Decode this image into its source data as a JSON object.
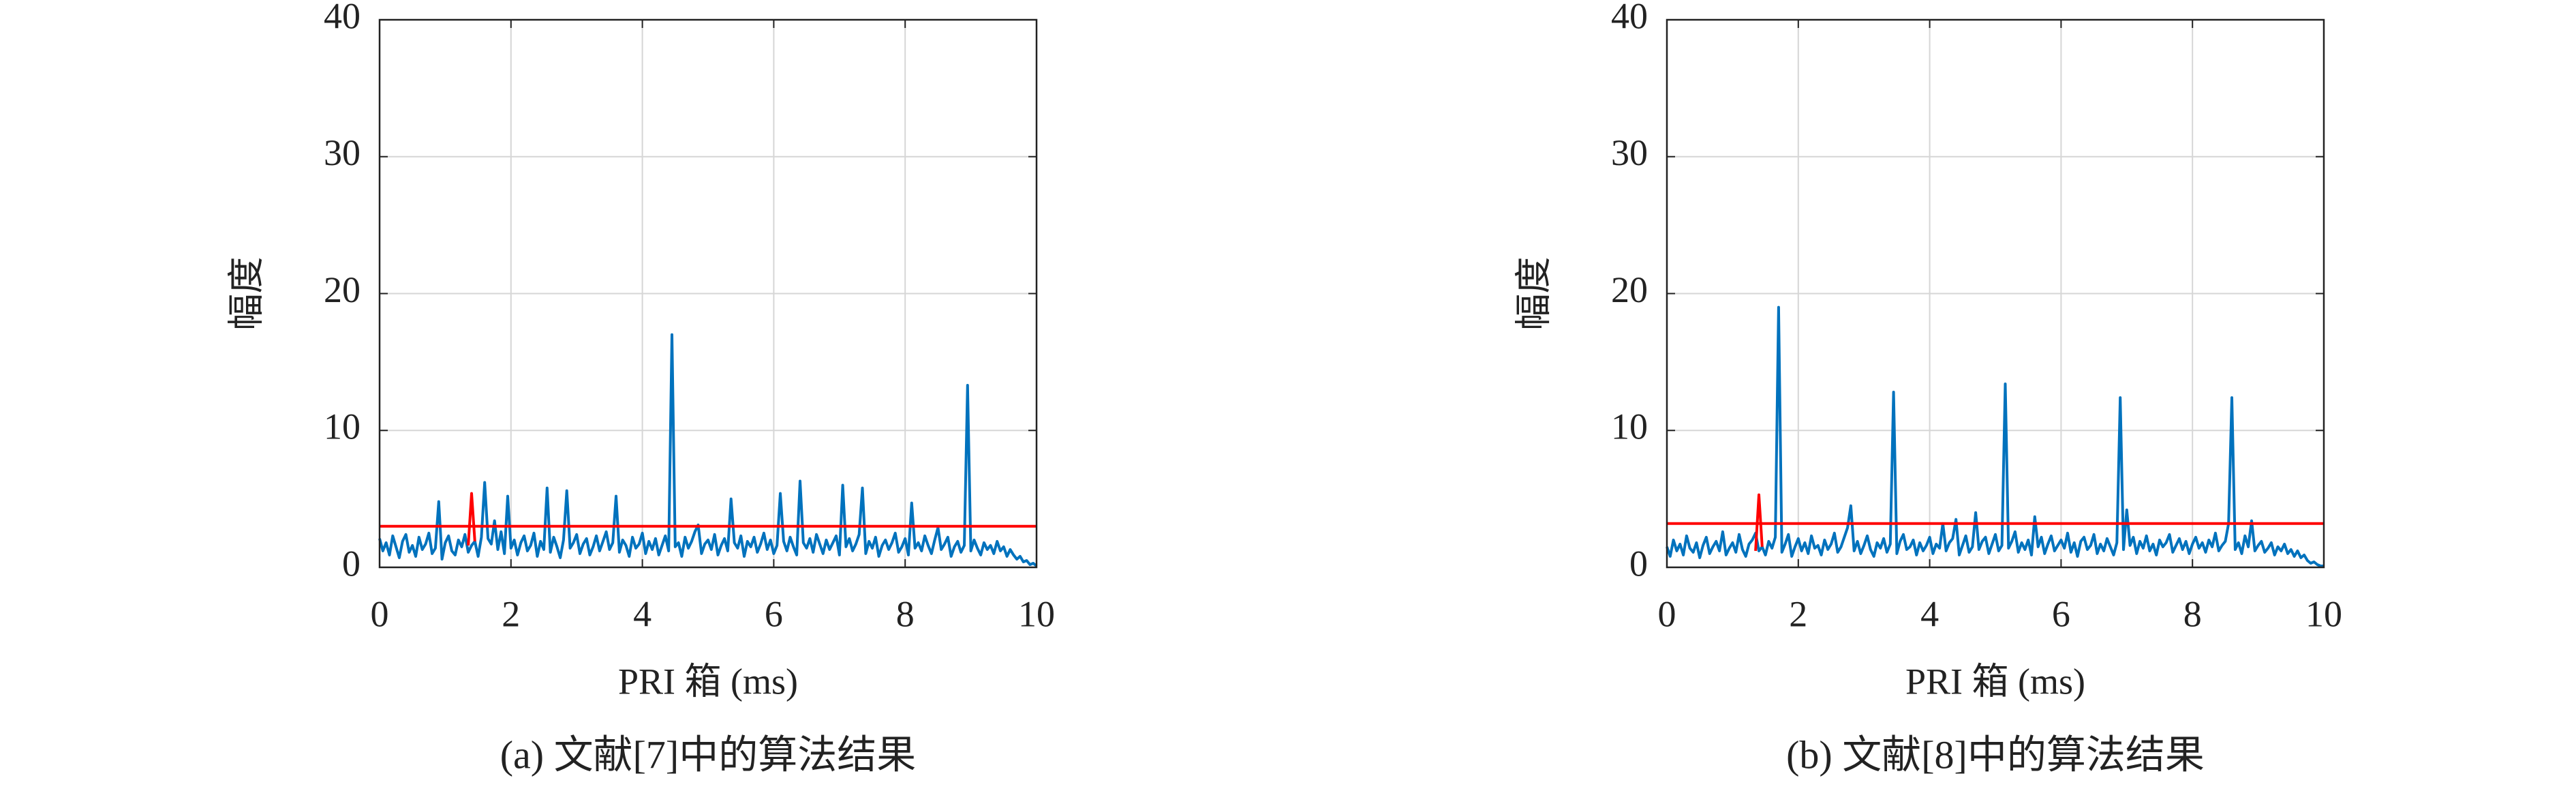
{
  "chart_data": [
    {
      "type": "line",
      "caption": "(a) 文献[7]中的算法结果",
      "xlabel": "PRI 箱 (ms)",
      "ylabel": "幅度",
      "xlim": [
        0,
        10
      ],
      "ylim": [
        0,
        40
      ],
      "xticks": [
        0,
        2,
        4,
        6,
        8,
        10
      ],
      "yticks": [
        0,
        10,
        20,
        30,
        40
      ],
      "grid": true,
      "series": [
        {
          "color": "#0072bd",
          "x": [
            0,
            0.05,
            0.1,
            0.15,
            0.2,
            0.25,
            0.3,
            0.35,
            0.4,
            0.45,
            0.5,
            0.55,
            0.6,
            0.65,
            0.7,
            0.75,
            0.8,
            0.85,
            0.9,
            0.95,
            1,
            1.05,
            1.1,
            1.15,
            1.2,
            1.25,
            1.3,
            1.35,
            1.4,
            1.45,
            1.5,
            1.55,
            1.6,
            1.65,
            1.7,
            1.75,
            1.8,
            1.85,
            1.9,
            1.95,
            2,
            2.05,
            2.1,
            2.15,
            2.2,
            2.25,
            2.3,
            2.35,
            2.4,
            2.45,
            2.5,
            2.55,
            2.6,
            2.65,
            2.7,
            2.75,
            2.8,
            2.85,
            2.9,
            2.95,
            3,
            3.05,
            3.1,
            3.15,
            3.2,
            3.25,
            3.3,
            3.35,
            3.4,
            3.45,
            3.5,
            3.55,
            3.6,
            3.65,
            3.7,
            3.75,
            3.8,
            3.85,
            3.9,
            3.95,
            4,
            4.05,
            4.1,
            4.15,
            4.2,
            4.25,
            4.3,
            4.35,
            4.4,
            4.45,
            4.5,
            4.55,
            4.6,
            4.65,
            4.7,
            4.75,
            4.8,
            4.85,
            4.9,
            4.95,
            5,
            5.05,
            5.1,
            5.15,
            5.2,
            5.25,
            5.3,
            5.35,
            5.4,
            5.45,
            5.5,
            5.55,
            5.6,
            5.65,
            5.7,
            5.75,
            5.8,
            5.85,
            5.9,
            5.95,
            6,
            6.05,
            6.1,
            6.15,
            6.2,
            6.25,
            6.3,
            6.35,
            6.4,
            6.45,
            6.5,
            6.55,
            6.6,
            6.65,
            6.7,
            6.75,
            6.8,
            6.85,
            6.9,
            6.95,
            7,
            7.05,
            7.1,
            7.15,
            7.2,
            7.25,
            7.3,
            7.35,
            7.4,
            7.45,
            7.5,
            7.55,
            7.6,
            7.65,
            7.7,
            7.75,
            7.8,
            7.85,
            7.9,
            7.95,
            8,
            8.05,
            8.1,
            8.15,
            8.2,
            8.25,
            8.3,
            8.35,
            8.4,
            8.45,
            8.5,
            8.55,
            8.6,
            8.65,
            8.7,
            8.75,
            8.8,
            8.85,
            8.9,
            8.95,
            9,
            9.05,
            9.1,
            9.15,
            9.2,
            9.25,
            9.3,
            9.35,
            9.4,
            9.45,
            9.5,
            9.55,
            9.6,
            9.65,
            9.7,
            9.75,
            9.8,
            9.85,
            9.9,
            9.95,
            10
          ],
          "values": [
            2.1,
            1.2,
            1.8,
            0.9,
            2.3,
            1.5,
            0.7,
            1.9,
            2.4,
            1.1,
            1.6,
            0.8,
            2.2,
            1.3,
            1.7,
            2.5,
            1.0,
            1.4,
            4.8,
            0.6,
            1.8,
            2.3,
            1.2,
            0.9,
            2.0,
            1.5,
            2.4,
            1.1,
            1.6,
            1.9,
            0.8,
            2.2,
            6.2,
            2.1,
            1.7,
            3.4,
            1.3,
            2.6,
            1.0,
            5.2,
            1.4,
            2.0,
            0.9,
            1.8,
            2.3,
            1.2,
            1.6,
            2.5,
            0.8,
            1.9,
            1.3,
            5.8,
            1.1,
            2.2,
            1.5,
            0.7,
            2.0,
            5.6,
            1.4,
            1.8,
            2.4,
            1.0,
            1.7,
            2.1,
            0.9,
            1.5,
            2.3,
            1.2,
            1.9,
            2.6,
            1.3,
            1.8,
            5.2,
            1.1,
            2.0,
            1.6,
            0.8,
            2.2,
            1.4,
            1.7,
            2.5,
            1.0,
            1.9,
            1.3,
            2.1,
            0.9,
            1.6,
            2.3,
            1.2,
            17.0,
            1.5,
            1.8,
            0.8,
            2.2,
            1.4,
            1.9,
            2.6,
            3.1,
            1.0,
            1.7,
            2.0,
            1.3,
            2.4,
            0.9,
            1.6,
            2.1,
            1.2,
            5.0,
            1.8,
            1.4,
            2.3,
            0.8,
            1.9,
            1.5,
            2.2,
            1.1,
            1.7,
            2.5,
            1.3,
            2.0,
            1.0,
            1.6,
            5.4,
            1.9,
            1.2,
            2.2,
            1.5,
            0.9,
            6.3,
            1.8,
            1.4,
            2.1,
            1.1,
            2.4,
            1.7,
            1.0,
            2.0,
            1.3,
            1.8,
            2.3,
            0.9,
            6.0,
            1.5,
            2.1,
            1.2,
            1.7,
            2.4,
            5.8,
            1.0,
            1.9,
            1.4,
            2.2,
            0.8,
            1.6,
            2.0,
            1.3,
            1.8,
            2.5,
            1.1,
            1.5,
            2.1,
            0.9,
            4.7,
            1.4,
            1.8,
            1.2,
            2.3,
            1.6,
            1.0,
            2.0,
            2.9,
            1.3,
            1.7,
            2.2,
            0.8,
            1.5,
            1.9,
            1.1,
            1.6,
            13.3,
            1.2,
            2.0,
            1.4,
            0.9,
            1.8,
            1.3,
            1.6,
            1.0,
            1.9,
            1.2,
            1.5,
            0.8,
            1.3,
            0.9,
            0.6,
            0.8,
            0.4,
            0.5,
            0.2,
            0.3,
            0.1
          ]
        },
        {
          "color": "#ff0000",
          "x": [
            1.35,
            1.4,
            1.45
          ],
          "values": [
            1.6,
            5.4,
            1.9
          ]
        },
        {
          "color": "#ff0000",
          "x": [
            0,
            10
          ],
          "values": [
            3,
            3
          ]
        }
      ]
    },
    {
      "type": "line",
      "caption": "(b) 文献[8]中的算法结果",
      "xlabel": "PRI 箱 (ms)",
      "ylabel": "幅度",
      "xlim": [
        0,
        10
      ],
      "ylim": [
        0,
        40
      ],
      "xticks": [
        0,
        2,
        4,
        6,
        8,
        10
      ],
      "yticks": [
        0,
        10,
        20,
        30,
        40
      ],
      "grid": true,
      "series": [
        {
          "color": "#0072bd",
          "x": [
            0,
            0.05,
            0.1,
            0.15,
            0.2,
            0.25,
            0.3,
            0.35,
            0.4,
            0.45,
            0.5,
            0.55,
            0.6,
            0.65,
            0.7,
            0.75,
            0.8,
            0.85,
            0.9,
            0.95,
            1,
            1.05,
            1.1,
            1.15,
            1.2,
            1.25,
            1.3,
            1.35,
            1.4,
            1.45,
            1.5,
            1.55,
            1.6,
            1.65,
            1.7,
            1.75,
            1.8,
            1.85,
            1.9,
            1.95,
            2,
            2.05,
            2.1,
            2.15,
            2.2,
            2.25,
            2.3,
            2.35,
            2.4,
            2.45,
            2.5,
            2.55,
            2.6,
            2.65,
            2.7,
            2.75,
            2.8,
            2.85,
            2.9,
            2.95,
            3,
            3.05,
            3.1,
            3.15,
            3.2,
            3.25,
            3.3,
            3.35,
            3.4,
            3.45,
            3.5,
            3.55,
            3.6,
            3.65,
            3.7,
            3.75,
            3.8,
            3.85,
            3.9,
            3.95,
            4,
            4.05,
            4.1,
            4.15,
            4.2,
            4.25,
            4.3,
            4.35,
            4.4,
            4.45,
            4.5,
            4.55,
            4.6,
            4.65,
            4.7,
            4.75,
            4.8,
            4.85,
            4.9,
            4.95,
            5,
            5.05,
            5.1,
            5.15,
            5.2,
            5.25,
            5.3,
            5.35,
            5.4,
            5.45,
            5.5,
            5.55,
            5.6,
            5.65,
            5.7,
            5.75,
            5.8,
            5.85,
            5.9,
            5.95,
            6,
            6.05,
            6.1,
            6.15,
            6.2,
            6.25,
            6.3,
            6.35,
            6.4,
            6.45,
            6.5,
            6.55,
            6.6,
            6.65,
            6.7,
            6.75,
            6.8,
            6.85,
            6.9,
            6.95,
            7,
            7.05,
            7.1,
            7.15,
            7.2,
            7.25,
            7.3,
            7.35,
            7.4,
            7.45,
            7.5,
            7.55,
            7.6,
            7.65,
            7.7,
            7.75,
            7.8,
            7.85,
            7.9,
            7.95,
            8,
            8.05,
            8.1,
            8.15,
            8.2,
            8.25,
            8.3,
            8.35,
            8.4,
            8.45,
            8.5,
            8.55,
            8.6,
            8.65,
            8.7,
            8.75,
            8.8,
            8.85,
            8.9,
            8.95,
            9,
            9.05,
            9.1,
            9.15,
            9.2,
            9.25,
            9.3,
            9.35,
            9.4,
            9.45,
            9.5,
            9.55,
            9.6,
            9.65,
            9.7,
            9.75,
            9.8,
            9.85,
            9.9,
            9.95,
            10
          ],
          "values": [
            1.5,
            0.8,
            2.0,
            1.2,
            1.7,
            0.9,
            2.3,
            1.4,
            1.1,
            1.8,
            0.7,
            1.6,
            2.2,
            1.0,
            1.5,
            1.9,
            1.2,
            2.6,
            0.9,
            1.4,
            1.8,
            1.1,
            2.4,
            1.3,
            0.8,
            1.7,
            2.0,
            2.5,
            1.2,
            1.5,
            0.9,
            1.9,
            1.4,
            2.2,
            19.0,
            1.1,
            1.7,
            2.4,
            0.8,
            1.5,
            2.1,
            1.2,
            1.8,
            1.0,
            2.3,
            1.4,
            1.6,
            0.9,
            2.0,
            1.3,
            1.7,
            2.5,
            1.1,
            1.5,
            2.2,
            2.9,
            4.5,
            1.2,
            1.9,
            1.0,
            1.6,
            2.3,
            1.3,
            0.8,
            1.8,
            1.4,
            2.1,
            1.1,
            1.7,
            12.8,
            1.0,
            1.9,
            2.4,
            1.3,
            1.5,
            2.0,
            0.9,
            1.8,
            1.2,
            1.6,
            2.2,
            1.0,
            1.7,
            1.4,
            3.2,
            1.2,
            1.8,
            2.1,
            3.5,
            0.9,
            1.6,
            2.3,
            1.1,
            1.5,
            4.0,
            1.3,
            1.9,
            2.2,
            1.0,
            1.7,
            2.4,
            1.2,
            1.6,
            13.4,
            1.4,
            1.9,
            2.6,
            1.1,
            1.8,
            1.3,
            2.0,
            0.9,
            3.7,
            1.5,
            2.2,
            1.0,
            1.7,
            2.3,
            1.2,
            1.6,
            2.0,
            1.4,
            2.5,
            1.1,
            1.8,
            0.8,
            1.9,
            2.2,
            1.3,
            1.6,
            2.4,
            1.0,
            1.7,
            1.2,
            2.1,
            1.5,
            0.9,
            1.8,
            12.4,
            1.3,
            4.2,
            1.6,
            2.2,
            1.0,
            1.9,
            1.4,
            2.3,
            1.2,
            1.7,
            0.9,
            2.0,
            1.5,
            1.8,
            2.4,
            1.1,
            1.6,
            2.1,
            1.3,
            1.9,
            1.0,
            1.7,
            2.2,
            1.4,
            1.8,
            1.1,
            2.0,
            1.5,
            2.5,
            1.2,
            1.6,
            1.9,
            3.2,
            12.4,
            1.3,
            1.8,
            1.0,
            2.3,
            1.5,
            3.4,
            1.2,
            1.6,
            1.9,
            1.1,
            1.4,
            1.8,
            0.9,
            1.5,
            1.2,
            1.7,
            1.0,
            1.3,
            0.8,
            1.2,
            0.7,
            0.9,
            0.5,
            0.3,
            0.4,
            0.2,
            0.1,
            0.1
          ]
        },
        {
          "color": "#ff0000",
          "x": [
            1.35,
            1.4,
            1.45
          ],
          "values": [
            1.2,
            5.3,
            1.5
          ]
        },
        {
          "color": "#ff0000",
          "x": [
            0,
            10
          ],
          "values": [
            3.2,
            3.2
          ]
        }
      ]
    }
  ]
}
